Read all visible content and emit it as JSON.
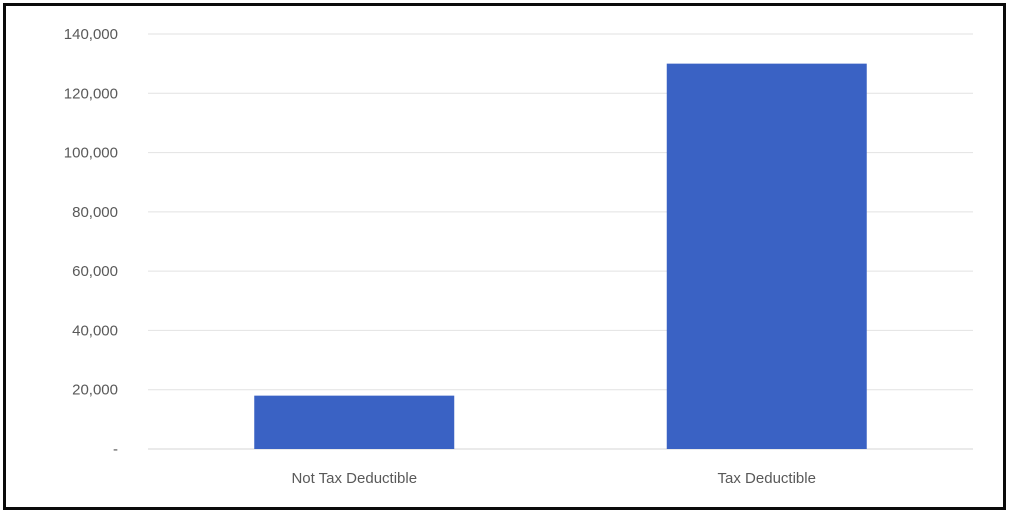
{
  "chart_data": {
    "type": "bar",
    "categories": [
      "Not Tax Deductible",
      "Tax Deductible"
    ],
    "values": [
      18000,
      130000
    ],
    "title": "",
    "xlabel": "",
    "ylabel": "",
    "ylim": [
      0,
      140000
    ],
    "yticks": [
      0,
      20000,
      40000,
      60000,
      80000,
      100000,
      120000,
      140000
    ],
    "ytick_labels": [
      "-",
      "20,000",
      "40,000",
      "60,000",
      "80,000",
      "100,000",
      "120,000",
      "140,000"
    ],
    "grid": true,
    "legend": "none",
    "bar_color": "#3a62c4"
  }
}
